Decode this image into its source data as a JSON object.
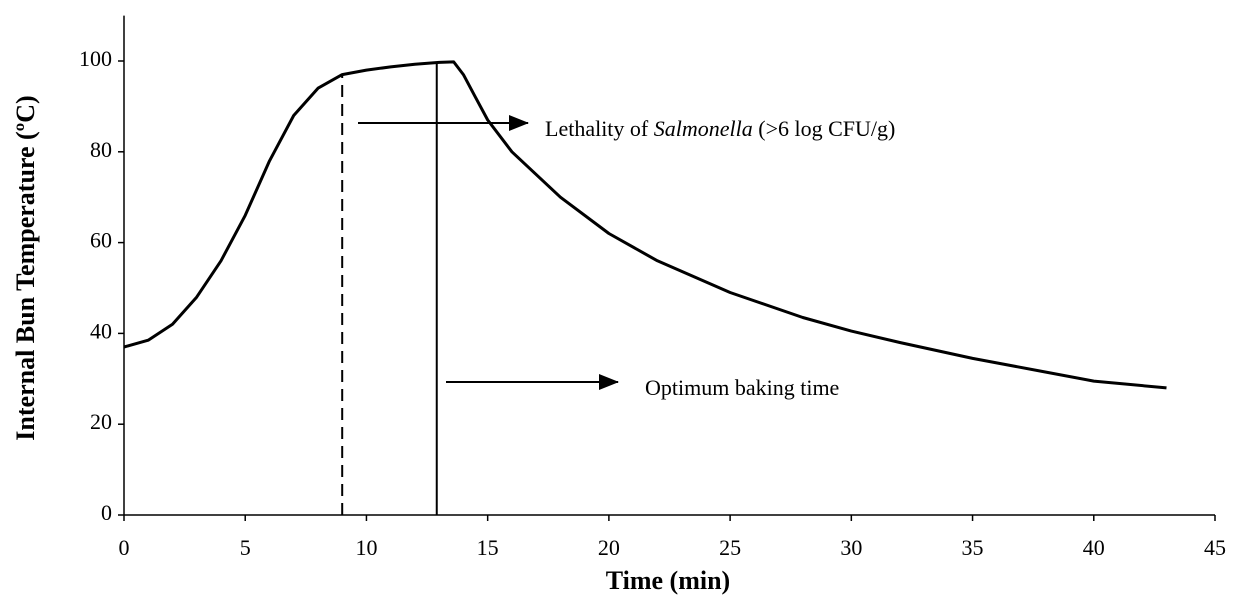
{
  "chart_data": {
    "type": "line",
    "x_label": "Time (min)",
    "y_label": "Internal Bun Temperature (ºC)",
    "x": [
      0,
      1,
      2,
      3,
      4,
      5,
      6,
      7,
      8,
      9,
      10,
      11,
      12,
      13,
      13.6,
      14,
      14.5,
      15,
      16,
      18,
      20,
      22,
      25,
      28,
      30,
      32,
      35,
      38,
      40,
      43
    ],
    "series": [
      {
        "color": "#000000",
        "values": [
          37,
          38.5,
          42,
          48,
          56,
          66,
          78,
          88,
          94,
          97,
          98,
          98.7,
          99.3,
          99.7,
          99.8,
          97,
          92,
          87,
          80,
          70,
          62,
          56,
          49,
          43.5,
          40.5,
          38,
          34.5,
          31.5,
          29.5,
          28
        ]
      }
    ],
    "xlim": [
      0,
      45
    ],
    "xticks": [
      0,
      5,
      10,
      15,
      20,
      25,
      30,
      35,
      40,
      45
    ],
    "ylim": [
      0,
      110
    ],
    "yticks": [
      0,
      20,
      40,
      60,
      80,
      100
    ],
    "vlines": [
      {
        "x": 9,
        "dashed": true
      },
      {
        "x": 12.9,
        "dashed": false
      }
    ],
    "annotations": [
      {
        "parts": [
          "Lethality of ",
          "Salmonella",
          " (>6 log CFU/g)"
        ]
      },
      {
        "parts": [
          "Optimum baking time"
        ]
      }
    ]
  }
}
